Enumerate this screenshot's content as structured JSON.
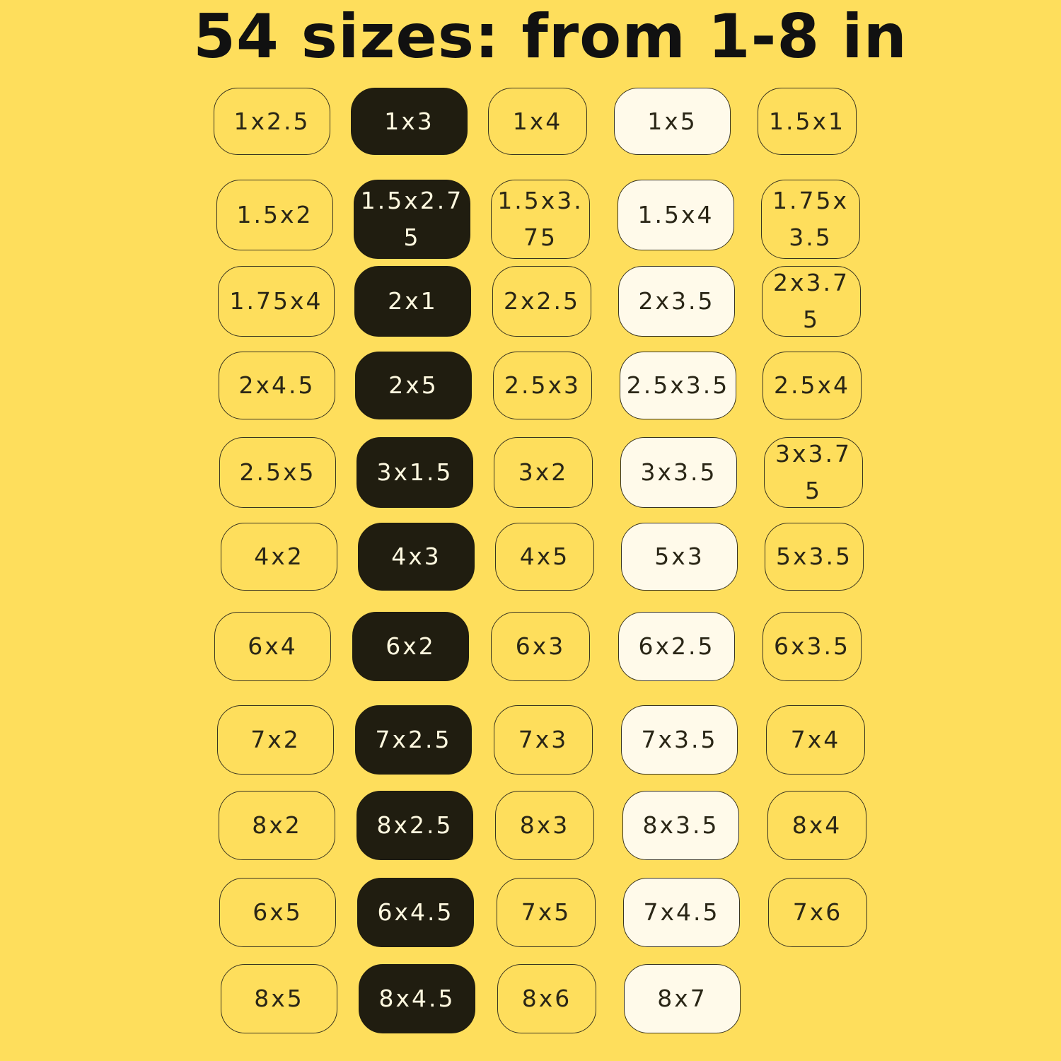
{
  "title": "54 sizes: from 1-8 in",
  "colors": {
    "background": "#fede5c",
    "dark": "#201d10",
    "light": "#fffaea"
  },
  "column_styles": [
    "plain",
    "dark",
    "plain",
    "light",
    "plain"
  ],
  "rows": [
    [
      "1x2.5",
      "1x3",
      "1x4",
      "1x5",
      "1.5x1"
    ],
    [
      "1.5x2",
      "1.5x2.75",
      "1.5x3.75",
      "1.5x4",
      "1.75x3.5"
    ],
    [
      "1.75x4",
      "2x1",
      "2x2.5",
      "2x3.5",
      "2x3.75"
    ],
    [
      "2x4.5",
      "2x5",
      "2.5x3",
      "2.5x3.5",
      "2.5x4"
    ],
    [
      "2.5x5",
      "3x1.5",
      "3x2",
      "3x3.5",
      "3x3.75"
    ],
    [
      "4x2",
      "4x3",
      "4x5",
      "5x3",
      "5x3.5"
    ],
    [
      "6x4",
      "6x2",
      "6x3",
      "6x2.5",
      "6x3.5"
    ],
    [
      "7x2",
      "7x2.5",
      "7x3",
      "7x3.5",
      "7x4"
    ],
    [
      "8x2",
      "8x2.5",
      "8x3",
      "8x3.5",
      "8x4"
    ],
    [
      "6x5",
      "6x4.5",
      "7x5",
      "7x4.5",
      "7x6"
    ],
    [
      "8x5",
      "8x4.5",
      "8x6",
      "8x7"
    ]
  ]
}
